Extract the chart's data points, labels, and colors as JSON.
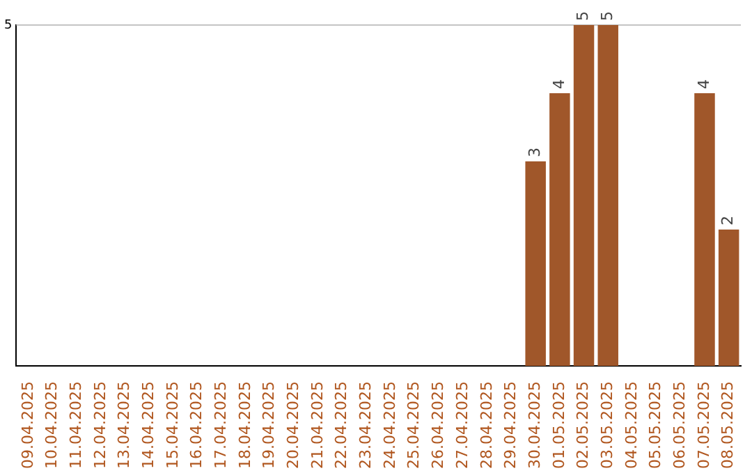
{
  "chart_data": {
    "type": "bar",
    "categories": [
      "09.04.2025",
      "10.04.2025",
      "11.04.2025",
      "12.04.2025",
      "13.04.2025",
      "14.04.2025",
      "15.04.2025",
      "16.04.2025",
      "17.04.2025",
      "18.04.2025",
      "19.04.2025",
      "20.04.2025",
      "21.04.2025",
      "22.04.2025",
      "23.04.2025",
      "24.04.2025",
      "25.04.2025",
      "26.04.2025",
      "27.04.2025",
      "28.04.2025",
      "29.04.2025",
      "30.04.2025",
      "01.05.2025",
      "02.05.2025",
      "03.05.2025",
      "04.05.2025",
      "05.05.2025",
      "06.05.2025",
      "07.05.2025",
      "08.05.2025"
    ],
    "values": [
      null,
      null,
      null,
      null,
      null,
      null,
      null,
      null,
      null,
      null,
      null,
      null,
      null,
      null,
      null,
      null,
      null,
      null,
      null,
      null,
      null,
      3,
      4,
      5,
      5,
      null,
      null,
      null,
      4,
      2
    ],
    "color": "#a0572a",
    "ylim": [
      0,
      5
    ],
    "yticks": [
      5
    ],
    "ref_lines": [
      {
        "axis": "y",
        "value": 5,
        "color": "#c4c4c4"
      }
    ],
    "data_labels": true,
    "legend": false
  }
}
